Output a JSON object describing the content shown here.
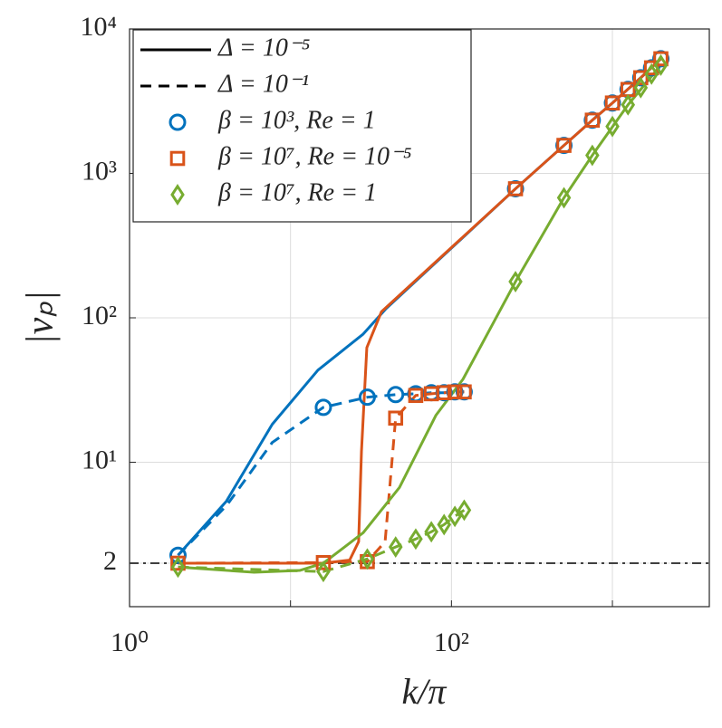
{
  "chart_data": {
    "type": "line",
    "x_label": "k/π",
    "y_label": "|vₚ|",
    "xscale": "log",
    "yscale": "log",
    "xlim": [
      1,
      4000
    ],
    "ylim": [
      1,
      10000
    ],
    "xticks": [
      {
        "value": 1,
        "label": "10⁰"
      },
      {
        "value": 10,
        "label": null
      },
      {
        "value": 100,
        "label": "10²"
      },
      {
        "value": 1000,
        "label": null
      }
    ],
    "yticks": [
      2,
      {
        "value": 10,
        "label": "10¹"
      },
      {
        "value": 100,
        "label": "10²"
      },
      {
        "value": 1000,
        "label": "10³"
      },
      {
        "value": 10000,
        "label": "10⁴"
      }
    ],
    "grid": true,
    "hline": {
      "value": 2,
      "color": "#404040",
      "style": "dashdot"
    },
    "legend": "upper left",
    "legend_styles": [
      {
        "name": "Δ = 10⁻⁵",
        "line": "solid"
      },
      {
        "name": "Δ = 10⁻¹",
        "line": "dashed"
      }
    ],
    "series": [
      {
        "name": "β = 10³, Re = 1",
        "color": "#0072BD",
        "marker": "circle",
        "marker_x": [
          2,
          16,
          30,
          45,
          60,
          75,
          90,
          105,
          120,
          250,
          500,
          750,
          1000,
          1250,
          1500,
          1750,
          2000
        ],
        "marker_values": [
          2.27,
          24.0,
          28.2,
          29.4,
          29.8,
          30.3,
          30.3,
          30.7,
          30.7,
          783,
          1563,
          2337,
          3073,
          3812,
          4596,
          5383,
          6220
        ],
        "lines": [
          {
            "line": "solid",
            "x": [
              2,
              4,
              7.7,
              14.8,
              28.3,
              39,
              250,
              500,
              750,
              1000,
              1500,
              2000
            ],
            "values": [
              2.27,
              5.38,
              18.3,
              43.4,
              77.2,
              115,
              783,
              1563,
              2337,
              3073,
              4596,
              6220
            ]
          },
          {
            "line": "dashed",
            "x": [
              2,
              4,
              7.7,
              16,
              30,
              45,
              60,
              75,
              90,
              105,
              120
            ],
            "values": [
              2.27,
              5.0,
              13.7,
              24.0,
              28.2,
              29.4,
              29.8,
              30.3,
              30.3,
              30.7,
              30.7
            ]
          }
        ]
      },
      {
        "name": "β = 10⁷, Re = 10⁻⁵",
        "color": "#D95319",
        "marker": "square",
        "marker_x": [
          2,
          16,
          30,
          45,
          60,
          75,
          90,
          105,
          120,
          250,
          500,
          750,
          1000,
          1250,
          1500,
          1750,
          2000
        ],
        "marker_values": [
          2,
          2.02,
          2.05,
          20.2,
          29.0,
          29.8,
          30.3,
          30.7,
          30.7,
          783,
          1563,
          2337,
          3073,
          3812,
          4596,
          5383,
          6220
        ],
        "lines": [
          {
            "line": "solid",
            "x": [
              2,
              16,
              23.3,
              26.5,
              27.6,
              29.8,
              36.7,
              250,
              500,
              750,
              1000,
              1500,
              2000
            ],
            "values": [
              2,
              2,
              2.1,
              2.82,
              11.9,
              62.2,
              110,
              783,
              1563,
              2337,
              3073,
              4596,
              6220
            ]
          },
          {
            "line": "dashed",
            "x": [
              2,
              16,
              30,
              38.7,
              45,
              60,
              75,
              90,
              105,
              120
            ],
            "values": [
              2,
              2.02,
              2.05,
              2.82,
              20.2,
              29.0,
              29.8,
              30.3,
              30.7,
              30.7
            ]
          }
        ]
      },
      {
        "name": "β = 10⁷, Re = 1",
        "color": "#77AC30",
        "marker": "diamond",
        "marker_x": [
          2,
          16,
          30,
          45,
          60,
          75,
          90,
          105,
          120,
          250,
          500,
          750,
          1000,
          1250,
          1500,
          1750,
          2000
        ],
        "marker_values": [
          1.88,
          1.75,
          2.14,
          2.59,
          2.94,
          3.3,
          3.7,
          4.22,
          4.66,
          178,
          678,
          1334,
          2113,
          2985,
          3923,
          4870,
          5623
        ],
        "lines": [
          {
            "line": "solid",
            "x": [
              2,
              5.94,
              11.4,
              16,
              28.3,
              47.5,
              80,
              118,
              250,
              500,
              750,
              1250,
              2000
            ],
            "values": [
              1.88,
              1.73,
              1.78,
              2.0,
              3.25,
              6.68,
              21.1,
              37.6,
              178,
              678,
              1334,
              2985,
              5623
            ]
          },
          {
            "line": "dashed",
            "x": [
              2,
              16,
              30,
              45,
              60,
              75,
              90,
              105,
              120
            ],
            "values": [
              1.88,
              1.75,
              2.14,
              2.59,
              2.94,
              3.3,
              3.7,
              4.22,
              4.66
            ]
          }
        ]
      }
    ]
  }
}
